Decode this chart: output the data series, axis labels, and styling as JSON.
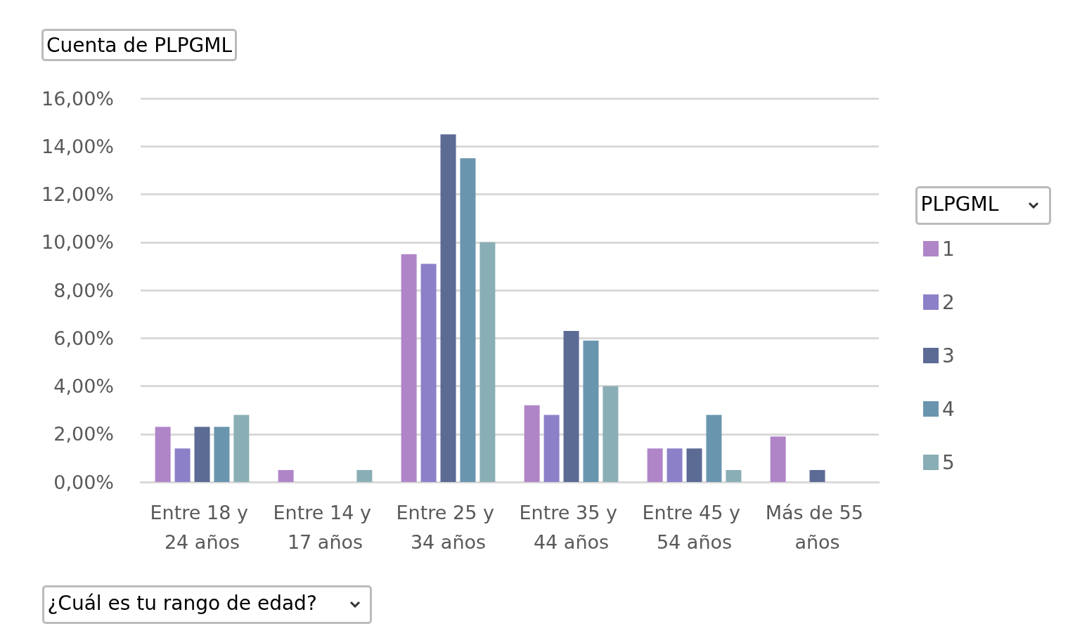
{
  "chart_data": {
    "type": "bar",
    "title": "Cuenta de PLPGML",
    "xlabel": "¿Cuál es tu rango de edad?",
    "legend_title": "PLPGML",
    "categories": [
      "Entre 18 y 24 años",
      "Entre 14 y 17 años",
      "Entre 25 y 34 años",
      "Entre 35 y 44 años",
      "Entre 45 y 54 años",
      "Más de 55 años"
    ],
    "series": [
      {
        "name": "1",
        "color": "#b085c8",
        "values": [
          2.3,
          0.5,
          9.5,
          3.2,
          1.4,
          1.9
        ]
      },
      {
        "name": "2",
        "color": "#8c80c8",
        "values": [
          1.4,
          null,
          9.1,
          2.8,
          1.4,
          null
        ]
      },
      {
        "name": "3",
        "color": "#5c6b94",
        "values": [
          2.3,
          null,
          14.5,
          6.3,
          1.4,
          0.5
        ]
      },
      {
        "name": "4",
        "color": "#6a95ae",
        "values": [
          2.3,
          null,
          13.5,
          5.9,
          2.8,
          null
        ]
      },
      {
        "name": "5",
        "color": "#8aaeb5",
        "values": [
          2.8,
          0.5,
          10.0,
          4.0,
          0.5,
          null
        ]
      }
    ],
    "ylim": [
      0,
      16
    ],
    "yticks": [
      {
        "value": 0,
        "label": "0,00%"
      },
      {
        "value": 2,
        "label": "2,00%"
      },
      {
        "value": 4,
        "label": "4,00%"
      },
      {
        "value": 6,
        "label": "6,00%"
      },
      {
        "value": 8,
        "label": "8,00%"
      },
      {
        "value": 10,
        "label": "10,00%"
      },
      {
        "value": 12,
        "label": "12,00%"
      },
      {
        "value": 14,
        "label": "14,00%"
      },
      {
        "value": 16,
        "label": "16,00%"
      }
    ],
    "grid": "y",
    "legend": "right"
  }
}
